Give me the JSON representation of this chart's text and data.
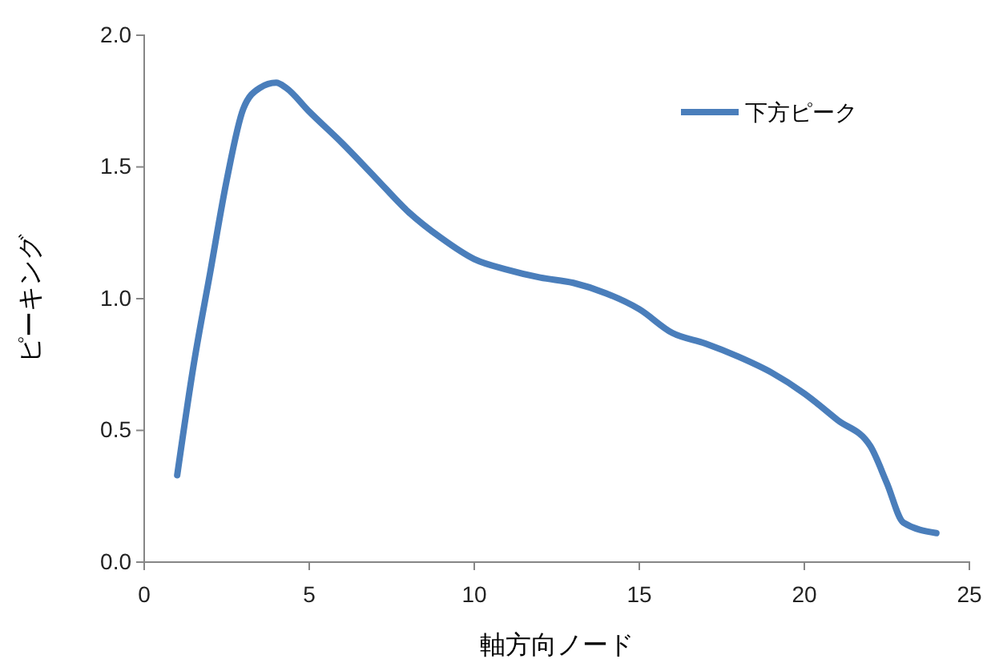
{
  "chart_data": {
    "type": "line",
    "xlabel": "軸方向ノード",
    "ylabel": "ピーキング",
    "x": [
      1,
      1.5,
      2,
      2.5,
      3,
      3.5,
      4,
      4.3,
      5,
      6,
      7,
      8,
      9,
      10,
      11,
      12,
      13,
      14,
      15,
      16,
      17,
      18,
      19,
      20,
      21,
      22,
      22.5,
      23,
      24
    ],
    "series": [
      {
        "name": "下方ピーク",
        "color": "#4a7ebb",
        "values": [
          0.33,
          0.75,
          1.1,
          1.45,
          1.72,
          1.8,
          1.82,
          1.8,
          1.71,
          1.59,
          1.46,
          1.33,
          1.23,
          1.15,
          1.11,
          1.08,
          1.06,
          1.02,
          0.96,
          0.87,
          0.83,
          0.78,
          0.72,
          0.64,
          0.54,
          0.44,
          0.3,
          0.15,
          0.11
        ]
      }
    ],
    "xlim": [
      0,
      25
    ],
    "xticks": [
      0,
      5,
      10,
      15,
      20,
      25
    ],
    "ylim": [
      0,
      2
    ],
    "yticks": [
      {
        "value": 0,
        "label": "0.0"
      },
      {
        "value": 0.5,
        "label": "0.5"
      },
      {
        "value": 1,
        "label": "1.0"
      },
      {
        "value": 1.5,
        "label": "1.5"
      },
      {
        "value": 2,
        "label": "2.0"
      }
    ],
    "grid": false,
    "legend": "top right",
    "marker": "none",
    "line_style": "solid"
  }
}
